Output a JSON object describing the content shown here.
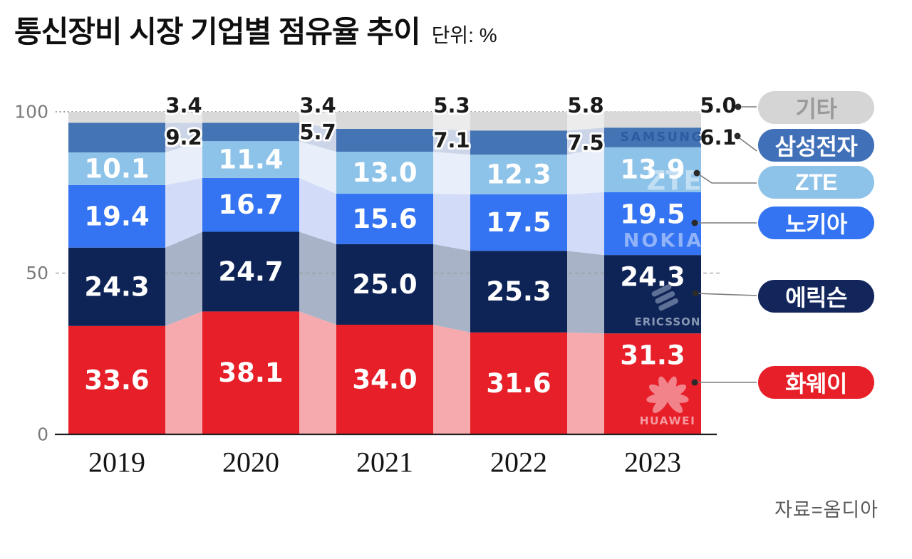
{
  "header": {
    "title": "통신장비 시장 기업별 점유율 추이",
    "unit_label": "단위: %"
  },
  "source": "자료=옴디아",
  "chart_data": {
    "type": "bar",
    "subtype": "stacked-bars-with-flow-bands",
    "title": "통신장비 시장 기업별 점유율 추이",
    "unit": "%",
    "x": [
      "2019",
      "2020",
      "2021",
      "2022",
      "2023"
    ],
    "ylim": [
      0,
      100
    ],
    "yticks": [
      "0",
      "50",
      "100"
    ],
    "grid": {
      "y100": "dotted",
      "y50": "dashed"
    },
    "legend_position": "right",
    "series": [
      {
        "name": "화웨이",
        "logo": "HUAWEI",
        "color": "#e71f28",
        "flow_color": "#f7aaae",
        "values": [
          33.6,
          38.1,
          34.0,
          31.6,
          31.3
        ]
      },
      {
        "name": "에릭슨",
        "logo": "ERICSSON",
        "color": "#0e2356",
        "flow_color": "#a8b3c8",
        "values": [
          24.3,
          24.7,
          25.0,
          25.3,
          24.3
        ]
      },
      {
        "name": "노키아",
        "logo": "NOKIA",
        "color": "#3474f2",
        "flow_color": "#d2dcf8",
        "values": [
          19.4,
          16.7,
          15.6,
          17.5,
          19.5
        ]
      },
      {
        "name": "ZTE",
        "logo": "ZTE",
        "color": "#8ec3e9",
        "flow_color": "#e8effa",
        "values": [
          10.1,
          11.4,
          13.0,
          12.3,
          13.9
        ]
      },
      {
        "name": "삼성전자",
        "logo": "SAMSUNG",
        "color": "#4474b4",
        "flow_color": "#ccd5e8",
        "values": [
          9.2,
          5.7,
          7.1,
          7.5,
          6.1
        ]
      },
      {
        "name": "기타",
        "logo": "",
        "color": "#d9d9d9",
        "flow_color": "#ececec",
        "values": [
          3.4,
          3.4,
          5.3,
          5.8,
          5.0
        ]
      }
    ],
    "legend": [
      {
        "id": "others",
        "label": "기타",
        "color": "#d5d5d5",
        "text_color": "#9a9a9a"
      },
      {
        "id": "samsung",
        "label": "삼성전자",
        "color": "#4070b8",
        "text_color": "#ffffff"
      },
      {
        "id": "zte",
        "label": "ZTE",
        "color": "#8ec3e9",
        "text_color": "#ffffff"
      },
      {
        "id": "nokia",
        "label": "노키아",
        "color": "#3474f2",
        "text_color": "#ffffff"
      },
      {
        "id": "ericsson",
        "label": "에릭슨",
        "color": "#12265c",
        "text_color": "#ffffff"
      },
      {
        "id": "huawei",
        "label": "화웨이",
        "color": "#e71f28",
        "text_color": "#ffffff"
      }
    ],
    "logo_colors": {
      "samsung_text": "#2d5aa0",
      "zte_watermark": "rgba(255,255,255,0.45)",
      "nokia_watermark": "rgba(255,255,255,0.45)",
      "ericsson_mark": "#5d7196",
      "ericsson_text": "#8796b2",
      "huawei_mark": "#f2838b",
      "huawei_text": "#f59aa0"
    }
  }
}
